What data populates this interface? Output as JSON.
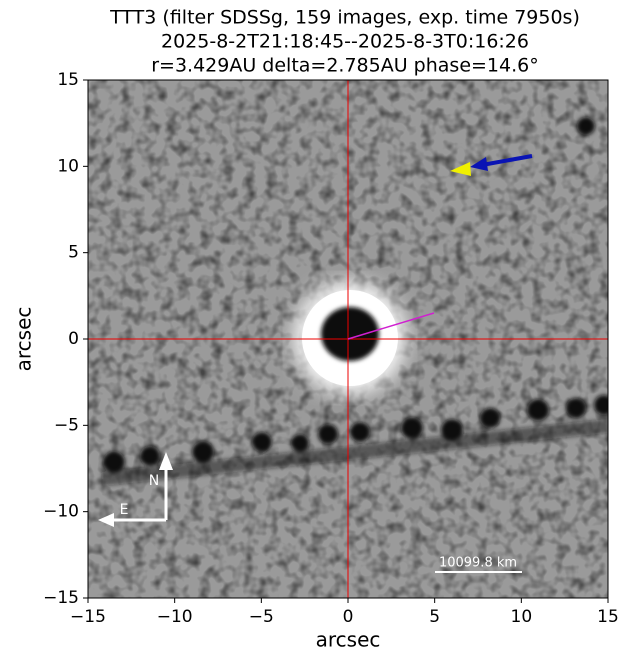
{
  "chart_data": {
    "type": "image",
    "title": [
      "TTT3 (filter SDSSg, 159 images, exp. time 7950s)",
      "2025-8-2T21:18:45--2025-8-3T0:16:26",
      "r=3.429AU delta=2.785AU phase=14.6°"
    ],
    "xlabel": "arcsec",
    "ylabel": "arcsec",
    "xlim": [
      -15,
      15
    ],
    "ylim": [
      -15,
      15
    ],
    "xticks": [
      {
        "value": -15,
        "label": "−15"
      },
      {
        "value": -10,
        "label": "−10"
      },
      {
        "value": -5,
        "label": "−5"
      },
      0,
      5,
      10,
      15
    ],
    "yticks": [
      {
        "value": -15,
        "label": "−15"
      },
      {
        "value": -10,
        "label": "−10"
      },
      {
        "value": -5,
        "label": "−5"
      },
      0,
      5,
      10,
      15
    ],
    "annotations": {
      "north": "N",
      "east": "E",
      "scale": "10099.8 km"
    }
  }
}
